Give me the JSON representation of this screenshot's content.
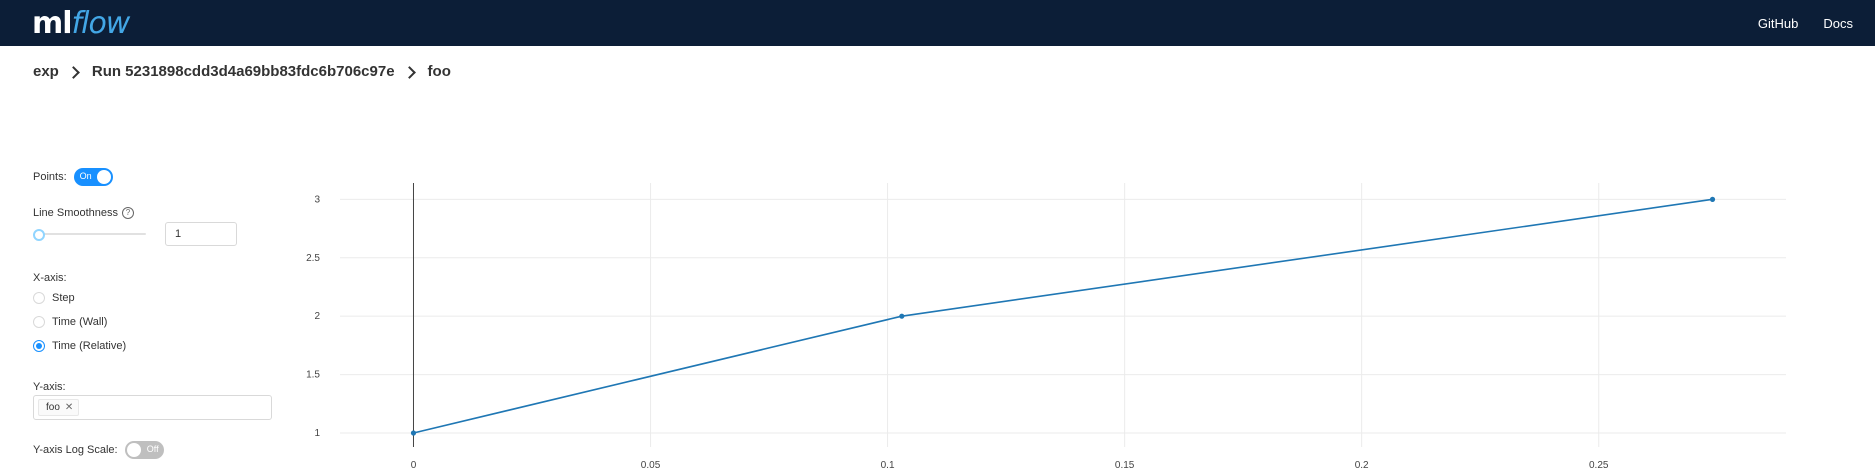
{
  "header": {
    "logo": {
      "ml": "ml",
      "flow": "flow"
    },
    "links": [
      "GitHub",
      "Docs"
    ],
    "bg_color": "#0c1e37"
  },
  "breadcrumb": {
    "experiment": "exp",
    "run": "Run 5231898cdd3d4a69bb83fdc6b706c97e",
    "metric": "foo"
  },
  "controls": {
    "points": {
      "label": "Points:",
      "state": "On"
    },
    "smoothness": {
      "label": "Line Smoothness",
      "value": "1",
      "slider_value": 0
    },
    "x_axis": {
      "label": "X-axis:",
      "options": [
        "Step",
        "Time (Wall)",
        "Time (Relative)"
      ],
      "selected": "Time (Relative)"
    },
    "y_axis": {
      "label": "Y-axis:",
      "selected_tags": [
        "foo"
      ]
    },
    "log_scale": {
      "label": "Y-axis Log Scale:",
      "state": "Off"
    }
  },
  "chart_data": {
    "type": "line",
    "x": [
      0,
      0.103,
      0.274
    ],
    "series": [
      {
        "values": [
          1,
          2,
          3
        ],
        "color": "#1f77b4"
      }
    ],
    "xticks": [
      0,
      0.05,
      0.1,
      0.15,
      0.2,
      0.25
    ],
    "yticks": [
      1,
      1.5,
      2,
      2.5,
      3
    ],
    "xtick_labels": [
      "0",
      "0.05",
      "0.1",
      "0.15",
      "0.2",
      "0.25"
    ],
    "ytick_labels": [
      "1",
      "1.5",
      "2",
      "2.5",
      "3"
    ],
    "xlim": [
      -0.0155,
      0.2895
    ],
    "ylim": [
      0.88,
      3.14
    ],
    "grid": true,
    "markers": true
  }
}
